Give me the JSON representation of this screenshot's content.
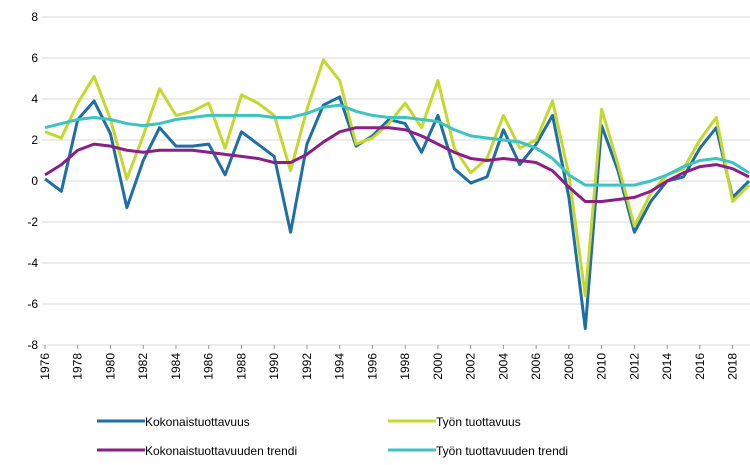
{
  "chart_data": {
    "type": "line",
    "x": [
      1976,
      1977,
      1978,
      1979,
      1980,
      1981,
      1982,
      1983,
      1984,
      1985,
      1986,
      1987,
      1988,
      1989,
      1990,
      1991,
      1992,
      1993,
      1994,
      1995,
      1996,
      1997,
      1998,
      1999,
      2000,
      2001,
      2002,
      2003,
      2004,
      2005,
      2006,
      2007,
      2008,
      2009,
      2010,
      2011,
      2012,
      2013,
      2014,
      2015,
      2016,
      2017,
      2018,
      2019
    ],
    "xlim": [
      1976,
      2019
    ],
    "xticks": [
      1976,
      1978,
      1980,
      1982,
      1984,
      1986,
      1988,
      1990,
      1992,
      1994,
      1996,
      1998,
      2000,
      2002,
      2004,
      2006,
      2008,
      2010,
      2012,
      2014,
      2016,
      2018
    ],
    "ylim": [
      -8,
      8
    ],
    "yticks": [
      -8,
      -6,
      -4,
      -2,
      0,
      2,
      4,
      6,
      8
    ],
    "grid": true,
    "legend": "bottom",
    "series": [
      {
        "name": "Kokonaistuottavuus",
        "color": "#1f6ea6",
        "values": [
          0.1,
          -0.5,
          3.0,
          3.9,
          2.3,
          -1.3,
          1.0,
          2.6,
          1.7,
          1.7,
          1.8,
          0.3,
          2.4,
          1.8,
          1.2,
          -2.5,
          1.8,
          3.7,
          4.1,
          1.7,
          2.2,
          3.0,
          2.8,
          1.4,
          3.2,
          0.6,
          -0.1,
          0.2,
          2.5,
          0.8,
          1.8,
          3.2,
          -0.8,
          -7.2,
          2.7,
          0.5,
          -2.5,
          -1.0,
          0.0,
          0.2,
          1.6,
          2.6,
          -0.8,
          0.0
        ]
      },
      {
        "name": "Työn tuottavuus",
        "color": "#c4d82e",
        "values": [
          2.4,
          2.1,
          3.8,
          5.1,
          3.0,
          0.1,
          2.2,
          4.5,
          3.2,
          3.4,
          3.8,
          1.6,
          4.2,
          3.8,
          3.2,
          0.5,
          3.5,
          5.9,
          4.9,
          1.8,
          2.1,
          2.8,
          3.8,
          2.6,
          4.9,
          1.6,
          0.4,
          1.1,
          3.2,
          1.6,
          2.0,
          3.9,
          0.3,
          -5.6,
          3.5,
          0.8,
          -2.2,
          -0.6,
          0.3,
          0.6,
          2.0,
          3.1,
          -1.0,
          -0.2
        ]
      },
      {
        "name": "Kokonaistuottavuuden trendi",
        "color": "#8b1e87",
        "values": [
          0.3,
          0.8,
          1.5,
          1.8,
          1.7,
          1.5,
          1.4,
          1.5,
          1.5,
          1.5,
          1.4,
          1.3,
          1.2,
          1.1,
          0.9,
          0.9,
          1.3,
          1.9,
          2.4,
          2.6,
          2.6,
          2.6,
          2.5,
          2.2,
          1.8,
          1.4,
          1.1,
          1.0,
          1.1,
          1.0,
          0.9,
          0.5,
          -0.3,
          -1.0,
          -1.0,
          -0.9,
          -0.8,
          -0.5,
          0.0,
          0.4,
          0.7,
          0.8,
          0.6,
          0.2
        ]
      },
      {
        "name": "Työn tuottavuuden trendi",
        "color": "#3dc3c1",
        "values": [
          2.6,
          2.8,
          3.0,
          3.1,
          3.0,
          2.8,
          2.7,
          2.8,
          3.0,
          3.1,
          3.2,
          3.2,
          3.2,
          3.2,
          3.1,
          3.1,
          3.3,
          3.6,
          3.7,
          3.4,
          3.2,
          3.1,
          3.1,
          3.0,
          2.9,
          2.5,
          2.2,
          2.1,
          2.0,
          1.9,
          1.6,
          1.1,
          0.3,
          -0.2,
          -0.2,
          -0.2,
          -0.2,
          0.0,
          0.3,
          0.7,
          1.0,
          1.1,
          0.9,
          0.4
        ]
      }
    ]
  }
}
